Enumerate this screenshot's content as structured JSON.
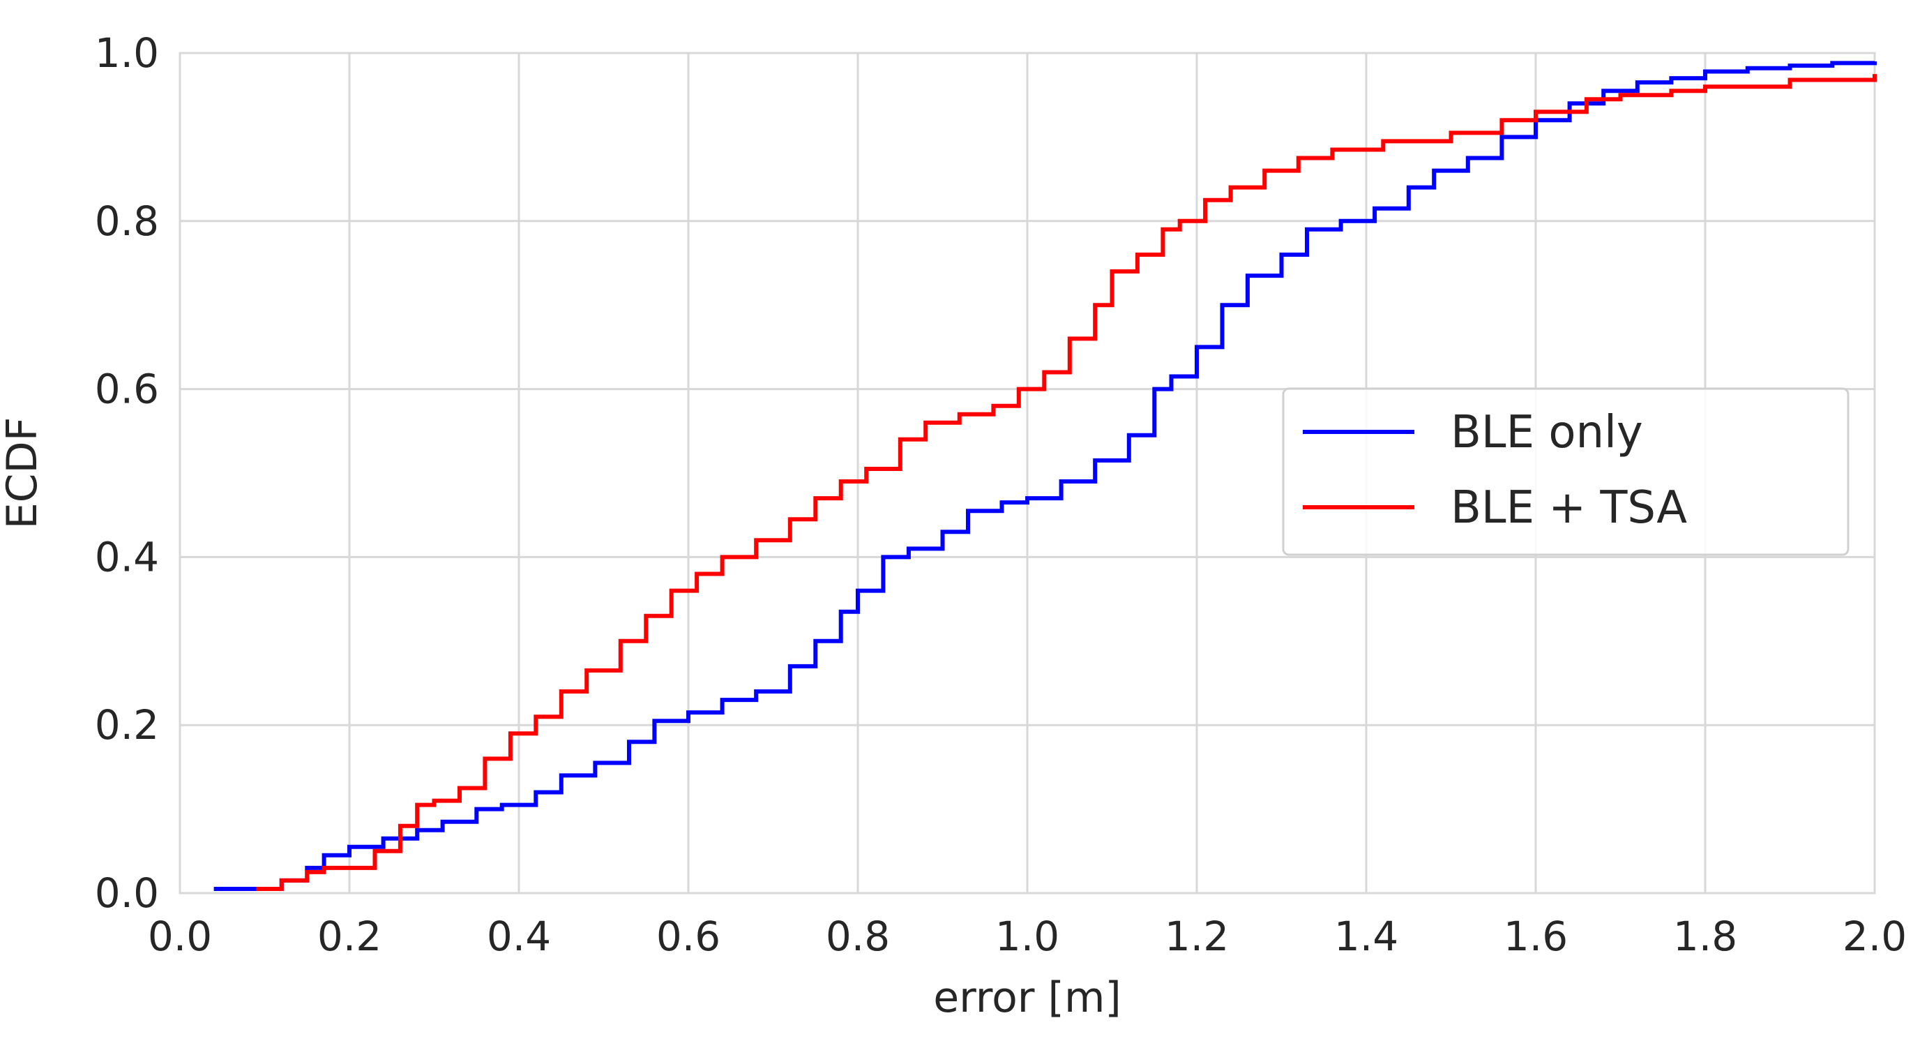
{
  "chart_data": {
    "type": "line",
    "title": "",
    "xlabel": "error [m]",
    "ylabel": "ECDF",
    "xlim": [
      0.0,
      2.0
    ],
    "ylim": [
      0.0,
      1.0
    ],
    "xticks": [
      "0.0",
      "0.2",
      "0.4",
      "0.6",
      "0.8",
      "1.0",
      "1.2",
      "1.4",
      "1.6",
      "1.8",
      "2.0"
    ],
    "yticks": [
      "0.0",
      "0.2",
      "0.4",
      "0.6",
      "0.8",
      "1.0"
    ],
    "grid": true,
    "legend_position": "center-right",
    "series": [
      {
        "name": "BLE only",
        "color": "#0000ff",
        "x": [
          0.04,
          0.09,
          0.12,
          0.15,
          0.17,
          0.2,
          0.24,
          0.28,
          0.31,
          0.35,
          0.38,
          0.42,
          0.45,
          0.49,
          0.53,
          0.56,
          0.6,
          0.64,
          0.68,
          0.72,
          0.75,
          0.78,
          0.8,
          0.83,
          0.86,
          0.9,
          0.93,
          0.97,
          1.0,
          1.04,
          1.08,
          1.12,
          1.15,
          1.17,
          1.2,
          1.23,
          1.26,
          1.3,
          1.33,
          1.37,
          1.41,
          1.45,
          1.48,
          1.52,
          1.56,
          1.6,
          1.64,
          1.68,
          1.72,
          1.76,
          1.8,
          1.85,
          1.9,
          1.95,
          2.0
        ],
        "y": [
          0.005,
          0.005,
          0.015,
          0.03,
          0.045,
          0.055,
          0.065,
          0.075,
          0.085,
          0.1,
          0.105,
          0.12,
          0.14,
          0.155,
          0.18,
          0.205,
          0.215,
          0.23,
          0.24,
          0.27,
          0.3,
          0.335,
          0.36,
          0.4,
          0.41,
          0.43,
          0.455,
          0.465,
          0.47,
          0.49,
          0.515,
          0.545,
          0.6,
          0.615,
          0.65,
          0.7,
          0.735,
          0.76,
          0.79,
          0.8,
          0.815,
          0.84,
          0.86,
          0.875,
          0.9,
          0.92,
          0.94,
          0.955,
          0.965,
          0.97,
          0.978,
          0.982,
          0.985,
          0.988,
          0.99
        ]
      },
      {
        "name": "BLE + TSA",
        "color": "#ff0000",
        "x": [
          0.09,
          0.12,
          0.15,
          0.17,
          0.2,
          0.23,
          0.26,
          0.28,
          0.3,
          0.33,
          0.36,
          0.39,
          0.42,
          0.45,
          0.48,
          0.52,
          0.55,
          0.58,
          0.61,
          0.64,
          0.68,
          0.72,
          0.75,
          0.78,
          0.81,
          0.85,
          0.88,
          0.92,
          0.96,
          0.99,
          1.02,
          1.05,
          1.08,
          1.1,
          1.13,
          1.16,
          1.18,
          1.21,
          1.24,
          1.28,
          1.32,
          1.36,
          1.42,
          1.5,
          1.56,
          1.6,
          1.66,
          1.7,
          1.76,
          1.8,
          1.9,
          2.0
        ],
        "y": [
          0.005,
          0.015,
          0.025,
          0.03,
          0.03,
          0.05,
          0.08,
          0.105,
          0.11,
          0.125,
          0.16,
          0.19,
          0.21,
          0.24,
          0.265,
          0.3,
          0.33,
          0.36,
          0.38,
          0.4,
          0.42,
          0.445,
          0.47,
          0.49,
          0.505,
          0.54,
          0.56,
          0.57,
          0.58,
          0.6,
          0.62,
          0.66,
          0.7,
          0.74,
          0.76,
          0.79,
          0.8,
          0.825,
          0.84,
          0.86,
          0.875,
          0.885,
          0.895,
          0.905,
          0.92,
          0.93,
          0.945,
          0.95,
          0.955,
          0.96,
          0.968,
          0.975
        ]
      }
    ]
  }
}
